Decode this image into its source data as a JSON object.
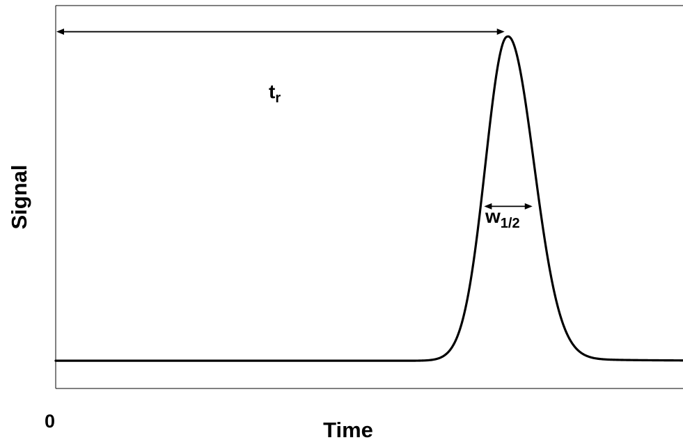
{
  "chart_data": {
    "type": "line",
    "title": "",
    "xlabel": "Time",
    "ylabel": "Signal",
    "x_tick_labels": [
      "0"
    ],
    "annotations": [
      {
        "id": "retention-time",
        "main": "t",
        "sub": "r"
      },
      {
        "id": "half-width",
        "main": "w",
        "sub": "1/2"
      }
    ],
    "x_range": [
      0,
      100
    ],
    "y_range": [
      0,
      100
    ],
    "grid": false,
    "legend": "none",
    "series": [
      {
        "peak_center": 72,
        "peak_height": 92,
        "baseline": 12,
        "sigma_left": 3.5,
        "sigma_right": 4.2,
        "tail_amplitude": 1.2,
        "tail_decay": 10
      }
    ],
    "retention_time": 72,
    "half_width_range": [
      68.3,
      76.0
    ],
    "colors": {
      "line": "#000000",
      "background": "#ffffff"
    }
  }
}
